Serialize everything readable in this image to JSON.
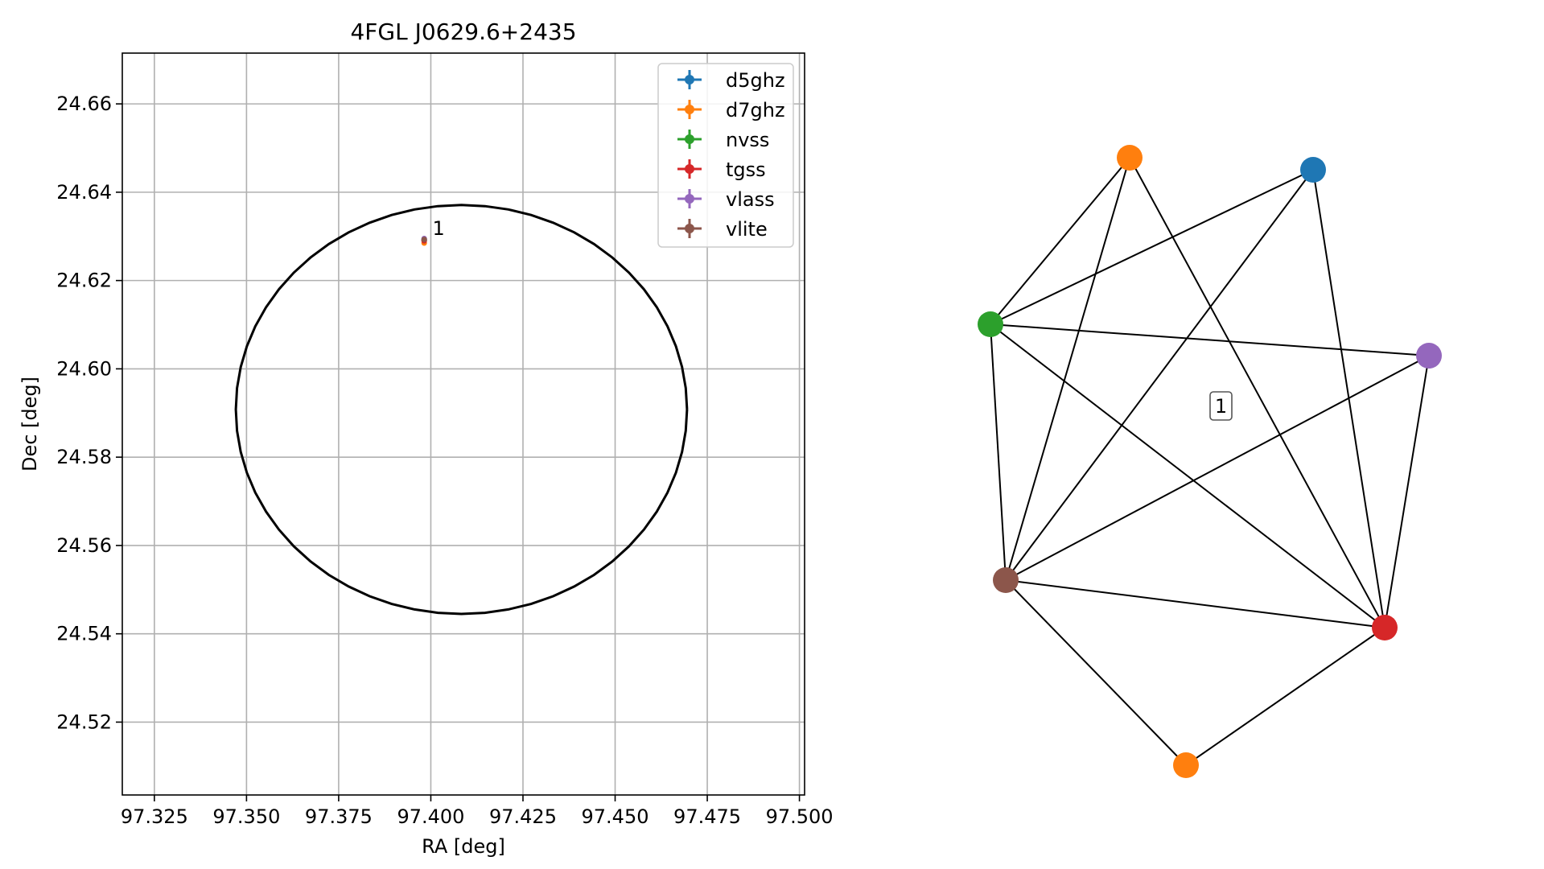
{
  "chart_data": [
    {
      "type": "scatter",
      "title": "4FGL J0629.6+2435",
      "xlabel": "RA [deg]",
      "ylabel": "Dec [deg]",
      "xlim": [
        97.3163,
        97.5014
      ],
      "ylim": [
        24.5035,
        24.6715
      ],
      "xticks": [
        "97.325",
        "97.350",
        "97.375",
        "97.400",
        "97.425",
        "97.450",
        "97.475",
        "97.500"
      ],
      "xtick_values": [
        97.325,
        97.35,
        97.375,
        97.4,
        97.425,
        97.45,
        97.475,
        97.5
      ],
      "yticks": [
        "24.52",
        "24.54",
        "24.56",
        "24.58",
        "24.60",
        "24.62",
        "24.64",
        "24.66"
      ],
      "ytick_values": [
        24.52,
        24.54,
        24.56,
        24.58,
        24.6,
        24.62,
        24.64,
        24.66
      ],
      "grid": true,
      "legend_position": "top-right",
      "ellipse": {
        "center": [
          97.4083,
          24.5908
        ],
        "radius_ra": 0.0612,
        "radius_dec": 0.0463,
        "color": "#000000"
      },
      "series": [
        {
          "name": "d5ghz",
          "color": "#1f77b4",
          "points": [
            [
              97.3982,
              24.6292
            ]
          ]
        },
        {
          "name": "d7ghz",
          "color": "#ff7f0e",
          "points": [
            [
              97.3982,
              24.6285
            ]
          ]
        },
        {
          "name": "nvss",
          "color": "#2ca02c",
          "points": [
            [
              97.3982,
              24.6291
            ]
          ]
        },
        {
          "name": "tgss",
          "color": "#d62728",
          "points": [
            [
              97.3982,
              24.629
            ]
          ]
        },
        {
          "name": "vlass",
          "color": "#9467bd",
          "points": [
            [
              97.3982,
              24.6295
            ]
          ]
        },
        {
          "name": "vlite",
          "color": "#8c564b",
          "points": [
            [
              97.3982,
              24.6293
            ]
          ]
        }
      ],
      "annotations": [
        {
          "text": "1",
          "x": 97.4,
          "y": 24.6312
        }
      ]
    },
    {
      "type": "network",
      "label": "1",
      "nodes": [
        {
          "id": "d7ghz_a",
          "color": "#ff7f0e"
        },
        {
          "id": "d5ghz",
          "color": "#1f77b4"
        },
        {
          "id": "nvss",
          "color": "#2ca02c"
        },
        {
          "id": "vlass",
          "color": "#9467bd"
        },
        {
          "id": "vlite",
          "color": "#8c564b"
        },
        {
          "id": "tgss",
          "color": "#d62728"
        },
        {
          "id": "d7ghz_b",
          "color": "#ff7f0e"
        }
      ],
      "edges": [
        [
          "d7ghz_a",
          "nvss"
        ],
        [
          "d7ghz_a",
          "vlite"
        ],
        [
          "d7ghz_a",
          "tgss"
        ],
        [
          "d5ghz",
          "nvss"
        ],
        [
          "d5ghz",
          "vlite"
        ],
        [
          "d5ghz",
          "tgss"
        ],
        [
          "nvss",
          "vlass"
        ],
        [
          "nvss",
          "vlite"
        ],
        [
          "nvss",
          "tgss"
        ],
        [
          "vlass",
          "vlite"
        ],
        [
          "vlass",
          "tgss"
        ],
        [
          "vlite",
          "tgss"
        ],
        [
          "vlite",
          "d7ghz_b"
        ],
        [
          "tgss",
          "d7ghz_b"
        ]
      ]
    }
  ]
}
